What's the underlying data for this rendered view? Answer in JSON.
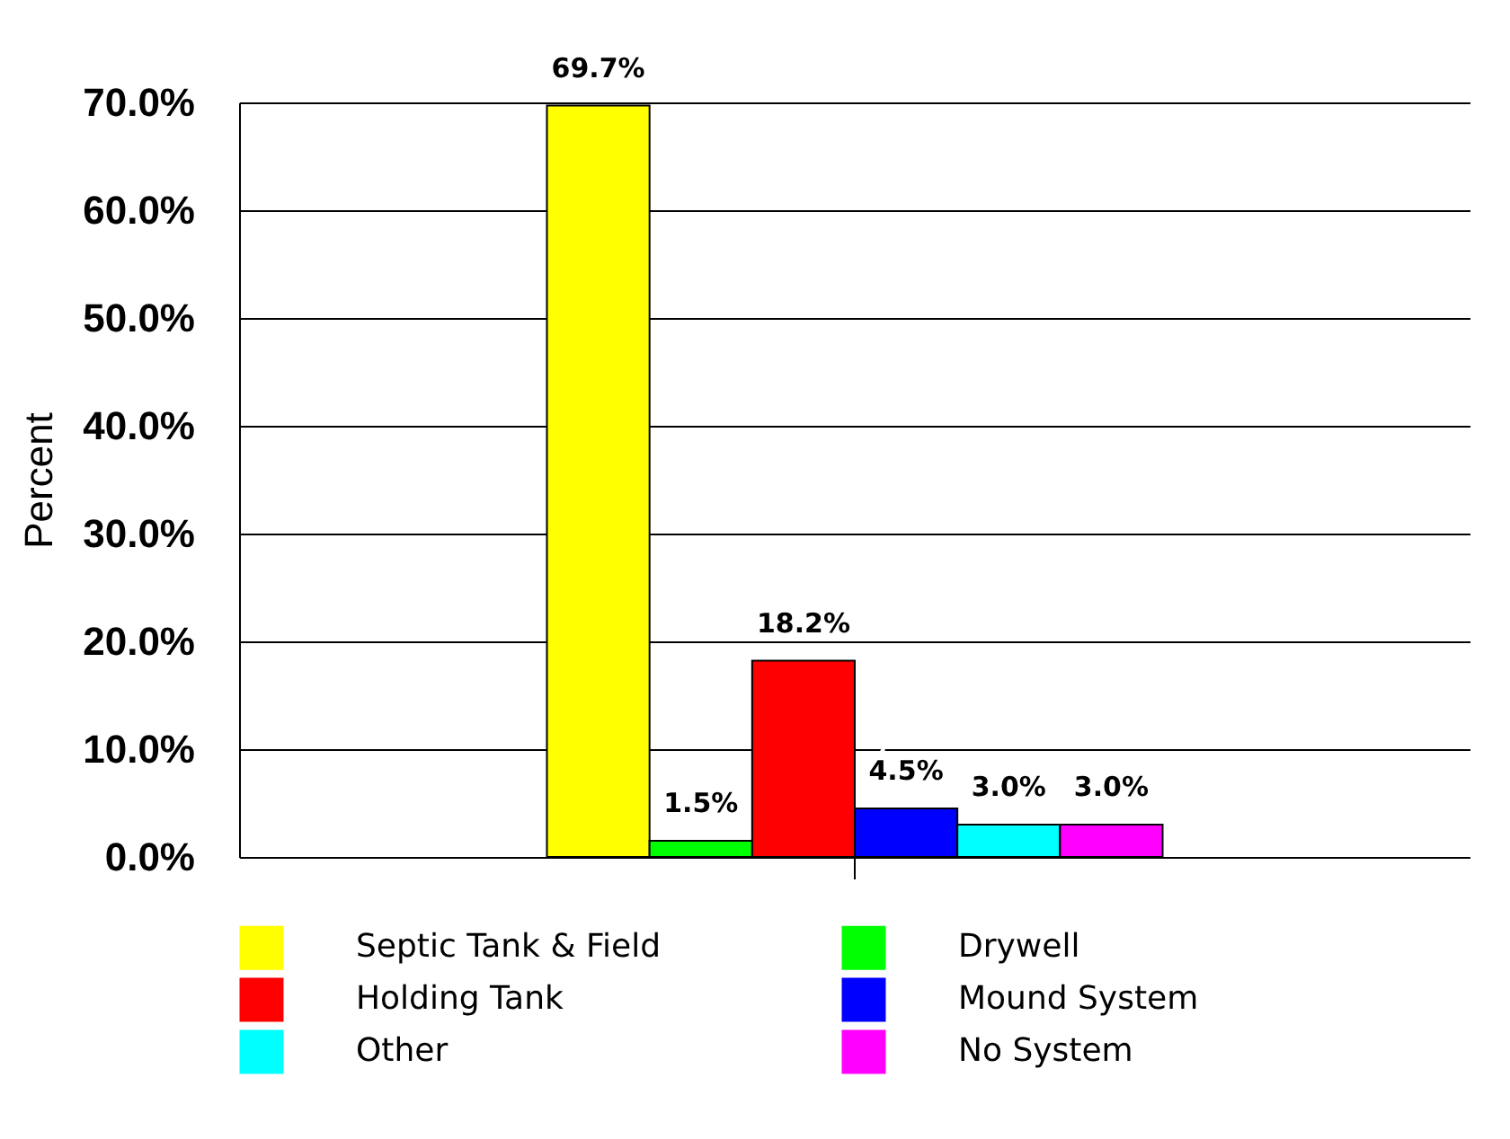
{
  "chart_data": {
    "type": "bar",
    "ylabel": "Percent",
    "categories": [
      null
    ],
    "series": [
      {
        "name": "Septic Tank & Field",
        "color": "#ffff00",
        "values": [
          69.7
        ],
        "value_labels": [
          "69.7%"
        ]
      },
      {
        "name": "Drywell",
        "color": "#00ff00",
        "values": [
          1.5
        ],
        "value_labels": [
          "1.5%"
        ]
      },
      {
        "name": "Holding Tank",
        "color": "#ff0000",
        "values": [
          18.2
        ],
        "value_labels": [
          "18.2%"
        ]
      },
      {
        "name": "Mound System",
        "color": "#0000ff",
        "values": [
          4.5
        ],
        "value_labels": [
          "4.5%"
        ]
      },
      {
        "name": "Other",
        "color": "#00ffff",
        "values": [
          3.0
        ],
        "value_labels": [
          "3.0%"
        ]
      },
      {
        "name": "No System",
        "color": "#ff00ff",
        "values": [
          3.0
        ],
        "value_labels": [
          "3.0%"
        ]
      }
    ],
    "ylim": [
      0,
      70
    ],
    "yticks": [
      {
        "value": 0,
        "label": "0.0%"
      },
      {
        "value": 10,
        "label": "10.0%"
      },
      {
        "value": 20,
        "label": "20.0%"
      },
      {
        "value": 30,
        "label": "30.0%"
      },
      {
        "value": 40,
        "label": "40.0%"
      },
      {
        "value": 50,
        "label": "50.0%"
      },
      {
        "value": 60,
        "label": "60.0%"
      },
      {
        "value": 70,
        "label": "70.0%"
      }
    ],
    "grid": "y",
    "legend": "bottom"
  }
}
